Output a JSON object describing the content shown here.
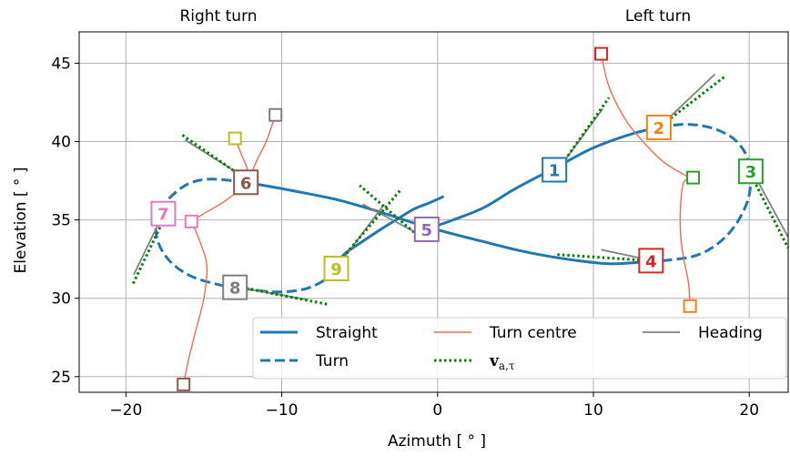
{
  "chart_data": {
    "type": "line",
    "top_labels": {
      "left": "Right turn",
      "right": "Left turn"
    },
    "xlabel": "Azimuth [ ° ]",
    "ylabel": "Elevation [ ° ]",
    "xlim": [
      -23,
      22.5
    ],
    "ylim": [
      24,
      47
    ],
    "xticks": [
      -20,
      -10,
      0,
      10,
      20
    ],
    "xtick_labels": [
      "−20",
      "−10",
      "0",
      "10",
      "20"
    ],
    "yticks": [
      25,
      30,
      35,
      40,
      45
    ],
    "ytick_labels": [
      "25",
      "30",
      "35",
      "40",
      "45"
    ],
    "grid": true,
    "legend": {
      "placement": "lower-right",
      "columns": 3,
      "entries": [
        {
          "label": "Straight",
          "style": "solid",
          "color": "#1f77b4"
        },
        {
          "label": "Turn",
          "style": "dashed",
          "color": "#1f77b4"
        },
        {
          "label": "Turn centre",
          "style": "solid-thin",
          "color": "#f06a4f"
        },
        {
          "label": "v_a,τ",
          "style": "dotted",
          "color": "#008000"
        },
        {
          "label": "Heading",
          "style": "solid-gray",
          "color": "#808080"
        }
      ]
    },
    "series": [
      {
        "name": "Straight",
        "style": "solid",
        "color": "#1f77b4",
        "segments": [
          [
            [
              -12.3,
              37.4
            ],
            [
              -9.5,
              36.9
            ],
            [
              -6.5,
              36.3
            ],
            [
              -4,
              35.6
            ],
            [
              -1.5,
              34.8
            ],
            [
              1,
              34.1
            ],
            [
              3,
              33.6
            ],
            [
              5,
              33.1
            ],
            [
              7,
              32.7
            ],
            [
              9,
              32.4
            ],
            [
              11,
              32.2
            ],
            [
              13,
              32.3
            ],
            [
              14.5,
              32.4
            ]
          ],
          [
            [
              0.4,
              36.5
            ],
            [
              -0.5,
              36.1
            ],
            [
              -1.5,
              35.7
            ],
            [
              -2.5,
              35.1
            ],
            [
              -3.8,
              34.3
            ],
            [
              -5,
              33.5
            ],
            [
              -6,
              32.8
            ],
            [
              -6.7,
              31.9
            ]
          ],
          [
            [
              -1,
              34.3
            ],
            [
              1,
              35
            ],
            [
              3,
              35.8
            ],
            [
              5,
              37
            ],
            [
              7.5,
              38.3
            ],
            [
              10,
              39.6
            ],
            [
              12.5,
              40.5
            ],
            [
              14.2,
              40.9
            ]
          ]
        ]
      },
      {
        "name": "Turn",
        "style": "dashed",
        "color": "#1f77b4",
        "segments": [
          [
            [
              -12.3,
              37.4
            ],
            [
              -14.5,
              37.6
            ],
            [
              -16,
              37.3
            ],
            [
              -17.3,
              36.3
            ],
            [
              -18,
              35.2
            ],
            [
              -18,
              33.8
            ],
            [
              -17.3,
              32.5
            ],
            [
              -16,
              31.5
            ],
            [
              -14.2,
              30.9
            ],
            [
              -12.3,
              30.6
            ],
            [
              -10.3,
              30.4
            ],
            [
              -8.5,
              30.6
            ],
            [
              -7.2,
              31.2
            ],
            [
              -6.7,
              31.9
            ]
          ],
          [
            [
              14.2,
              40.9
            ],
            [
              16,
              41.1
            ],
            [
              17.8,
              40.8
            ],
            [
              19.2,
              40
            ],
            [
              20,
              38.6
            ],
            [
              20,
              36.6
            ],
            [
              19.2,
              34.8
            ],
            [
              18,
              33.5
            ],
            [
              16.5,
              32.7
            ],
            [
              14.5,
              32.4
            ]
          ]
        ]
      }
    ],
    "turn_centre_paths": [
      {
        "points": [
          [
            -10.4,
            41.7
          ],
          [
            -11,
            40
          ],
          [
            -11.5,
            39
          ],
          [
            -12.3,
            37.4
          ],
          [
            -13.5,
            36.3
          ],
          [
            -15,
            35.4
          ],
          [
            -15.8,
            34.9
          ]
        ]
      },
      {
        "points": [
          [
            -13,
            40.2
          ],
          [
            -12.6,
            39.2
          ],
          [
            -12.2,
            38.2
          ],
          [
            -12.3,
            37.4
          ]
        ]
      },
      {
        "points": [
          [
            -15.8,
            34.9
          ],
          [
            -15.2,
            33.5
          ],
          [
            -14.8,
            32
          ],
          [
            -15,
            30
          ],
          [
            -15.5,
            28
          ],
          [
            -16,
            26
          ],
          [
            -16.3,
            24.5
          ]
        ]
      },
      {
        "points": [
          [
            10.5,
            45.6
          ],
          [
            11,
            43.5
          ],
          [
            12,
            41.5
          ],
          [
            13,
            40.2
          ],
          [
            14.5,
            38.7
          ],
          [
            16,
            37.8
          ],
          [
            16.4,
            37.7
          ]
        ]
      },
      {
        "points": [
          [
            16.4,
            37.7
          ],
          [
            15.8,
            37.4
          ],
          [
            15.6,
            36
          ],
          [
            15.6,
            34
          ],
          [
            15.8,
            32.5
          ],
          [
            16.1,
            31
          ],
          [
            16.2,
            29.5
          ]
        ]
      }
    ],
    "turn_centre_markers": [
      {
        "x": -10.4,
        "y": 41.7,
        "color": "#7f7f7f"
      },
      {
        "x": -13.0,
        "y": 40.2,
        "color": "#bcbd22"
      },
      {
        "x": -15.8,
        "y": 34.9,
        "color": "#e377c2"
      },
      {
        "x": -16.3,
        "y": 24.5,
        "color": "#8c564b"
      },
      {
        "x": 10.5,
        "y": 45.6,
        "color": "#d62728"
      },
      {
        "x": 16.4,
        "y": 37.7,
        "color": "#2ca02c"
      },
      {
        "x": 16.2,
        "y": 29.5,
        "color": "#ff7f0e"
      }
    ],
    "heading_lines": [
      {
        "from": [
          7.8,
          38.3
        ],
        "to": [
          10.6,
          42.1
        ]
      },
      {
        "from": [
          14.2,
          40.9
        ],
        "to": [
          17.8,
          44.3
        ]
      },
      {
        "from": [
          20.2,
          38.1
        ],
        "to": [
          22.5,
          33.9
        ]
      },
      {
        "from": [
          13.8,
          32.4
        ],
        "to": [
          10.5,
          33.1
        ]
      },
      {
        "from": [
          -1.4,
          34.2
        ],
        "to": [
          -4.8,
          36.0
        ]
      },
      {
        "from": [
          -6.5,
          31.9
        ],
        "to": [
          -3.5,
          35.9
        ]
      },
      {
        "from": [
          -12.2,
          37.6
        ],
        "to": [
          -16.2,
          40.1
        ]
      },
      {
        "from": [
          -17.6,
          35.4
        ],
        "to": [
          -19.5,
          31.5
        ]
      },
      {
        "from": [
          -12.8,
          30.7
        ],
        "to": [
          -8.3,
          29.9
        ]
      }
    ],
    "velocity_lines": [
      {
        "from": [
          7.8,
          38.3
        ],
        "to": [
          11.0,
          42.8
        ]
      },
      {
        "from": [
          14.2,
          40.9
        ],
        "to": [
          18.5,
          44.2
        ]
      },
      {
        "from": [
          20.0,
          38.1
        ],
        "to": [
          22.5,
          33.2
        ]
      },
      {
        "from": [
          13.6,
          32.4
        ],
        "to": [
          7.5,
          32.8
        ]
      },
      {
        "from": [
          -1.5,
          34.2
        ],
        "to": [
          -5.0,
          37.2
        ]
      },
      {
        "from": [
          -6.7,
          31.9
        ],
        "to": [
          -2.3,
          37.0
        ]
      },
      {
        "from": [
          -12.3,
          37.6
        ],
        "to": [
          -16.5,
          40.5
        ]
      },
      {
        "from": [
          -17.4,
          35.4
        ],
        "to": [
          -19.6,
          30.8
        ]
      },
      {
        "from": [
          -12.6,
          30.7
        ],
        "to": [
          -7.0,
          29.6
        ]
      }
    ],
    "numbered_markers": [
      {
        "label": "1",
        "x": 7.5,
        "y": 38.2,
        "color": "#1f77b4"
      },
      {
        "label": "2",
        "x": 14.2,
        "y": 40.9,
        "color": "#ff7f0e"
      },
      {
        "label": "3",
        "x": 20.1,
        "y": 38.1,
        "color": "#2ca02c"
      },
      {
        "label": "4",
        "x": 13.7,
        "y": 32.4,
        "color": "#d62728"
      },
      {
        "label": "5",
        "x": -0.7,
        "y": 34.4,
        "color": "#9467bd"
      },
      {
        "label": "6",
        "x": -12.3,
        "y": 37.4,
        "color": "#8c564b"
      },
      {
        "label": "7",
        "x": -17.6,
        "y": 35.4,
        "color": "#e377c2"
      },
      {
        "label": "8",
        "x": -13.0,
        "y": 30.7,
        "color": "#7f7f7f"
      },
      {
        "label": "9",
        "x": -6.5,
        "y": 31.9,
        "color": "#bcbd22"
      }
    ]
  }
}
